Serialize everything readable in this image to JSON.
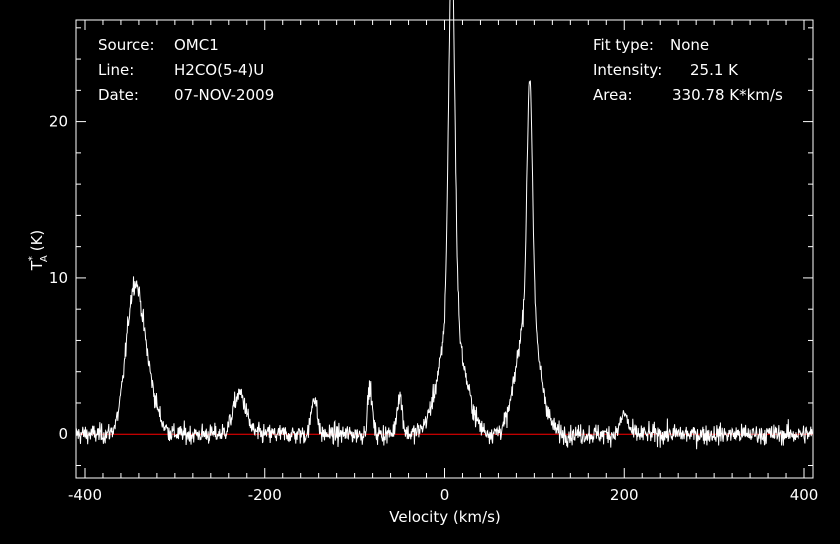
{
  "header_left": {
    "source_label": "Source:",
    "source_value": "OMC1",
    "line_label": "Line:",
    "line_value": "H2CO(5-4)U",
    "date_label": "Date:",
    "date_value": "07-NOV-2009"
  },
  "header_right": {
    "fit_label": "Fit type:",
    "fit_value": "None",
    "intensity_label": "Intensity:",
    "intensity_value": "25.1 K",
    "area_label": "Area:",
    "area_value": "330.78 K*km/s"
  },
  "chart_data": {
    "type": "line",
    "xlabel": "Velocity (km/s)",
    "ylabel": "T",
    "ylabel_sup": "*",
    "ylabel_sub": "A",
    "ylabel_unit": "(K)",
    "xlim": [
      -410,
      410
    ],
    "ylim": [
      -2.8,
      26.5
    ],
    "xticks": [
      -400,
      -200,
      0,
      200,
      400
    ],
    "yticks": [
      0,
      10,
      20
    ],
    "xtick_labels": [
      "-400",
      "-200",
      "0",
      "200",
      "400"
    ],
    "ytick_labels": [
      "0",
      "10",
      "20"
    ],
    "baseline": 0,
    "colors": {
      "background": "#000000",
      "frame": "#ffffff",
      "trace": "#ffffff",
      "baseline": "#ff0000"
    },
    "noise_rms_K": 0.45,
    "peaks": [
      {
        "v": -346,
        "amp": 7.8,
        "width": 9
      },
      {
        "v": -333,
        "amp": 3.5,
        "width": 11
      },
      {
        "v": -228,
        "amp": 2.6,
        "width": 7
      },
      {
        "v": -145,
        "amp": 2.5,
        "width": 3
      },
      {
        "v": -83,
        "amp": 3.0,
        "width": 2.5
      },
      {
        "v": -50,
        "amp": 2.5,
        "width": 3
      },
      {
        "v": 8,
        "amp": 24.0,
        "width": 3.5
      },
      {
        "v": 8,
        "amp": 7.0,
        "width": 14
      },
      {
        "v": 95,
        "amp": 15.0,
        "width": 3
      },
      {
        "v": 93,
        "amp": 8.0,
        "width": 12
      },
      {
        "v": 200,
        "amp": 1.3,
        "width": 4
      }
    ]
  }
}
